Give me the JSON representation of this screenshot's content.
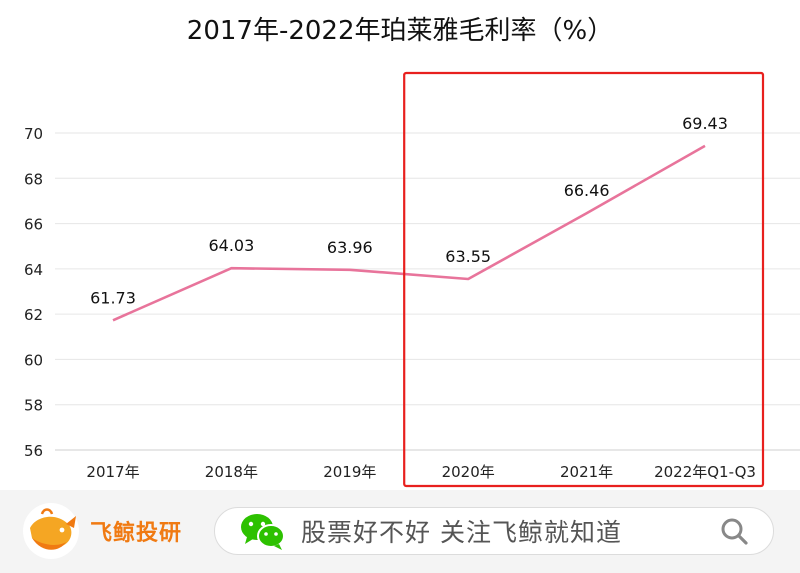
{
  "chart_data": {
    "type": "line",
    "title": "2017年-2022年珀莱雅毛利率（%）",
    "categories": [
      "2017年",
      "2018年",
      "2019年",
      "2020年",
      "2021年",
      "2022年Q1-Q3"
    ],
    "series": [
      {
        "values": [
          61.73,
          64.03,
          63.96,
          63.55,
          66.46,
          69.43
        ],
        "color": "#e8749b"
      }
    ],
    "data_labels": [
      "61.73",
      "64.03",
      "63.96",
      "63.55",
      "66.46",
      "69.43"
    ],
    "ylim": [
      56,
      70
    ],
    "yticks": [
      56,
      58,
      60,
      62,
      64,
      66,
      68,
      70
    ],
    "grid": true,
    "highlight": {
      "from_category": "2020年",
      "to_category": "2022年Q1-Q3",
      "color": "#e8201e"
    }
  },
  "footer": {
    "brand_name": "飞鲸投研",
    "brand_icon": "whale-logo-icon",
    "wechat_icon": "wechat-icon",
    "slogan": "股票好不好 关注飞鲸就知道",
    "search_icon": "search-icon",
    "brand_color": "#f07a12"
  }
}
